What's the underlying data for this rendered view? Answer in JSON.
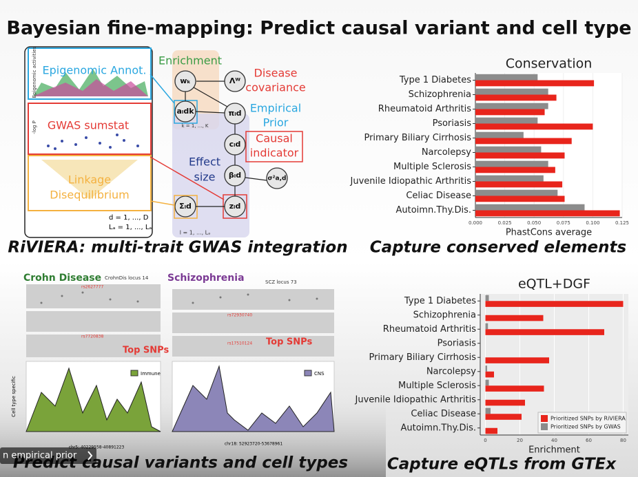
{
  "slide": {
    "title": "Bayesian fine-mapping: Predict causal variant and cell type",
    "captions": [
      "RiVIERA: multi-trait GWAS integration",
      "Capture conserved elements",
      "Predict causal variants and cell types",
      "Capture eQTLs from GTEx"
    ],
    "player_overlay": "n empirical prior"
  },
  "diagram": {
    "epigenomic": "Epigenomic Annot.",
    "gwas": "GWAS sumstat",
    "ld_1": "Linkage",
    "ld_2": "Disequilibrium",
    "enrichment": "Enrichment",
    "disease_1": "Disease",
    "disease_2": "covariance",
    "prior_1": "Empirical",
    "prior_2": "Prior",
    "causal_1": "Causal",
    "causal_2": "indicator",
    "effect_1": "Effect",
    "effect_2": "size",
    "node_w": "wₖ",
    "node_lambda": "Λᵂ",
    "node_a": "aₗdk",
    "node_pi": "πₗd",
    "node_c": "cₗd",
    "node_beta": "βₗd",
    "node_sigma": "σ²a,d",
    "node_Sigma": "Σₗd",
    "node_z": "zₗd",
    "plate_k": "k = 1, ..., K",
    "plate_l": "l = 1, ..., Lₐ",
    "index_d": "d = 1, ..., D",
    "index_l": "Lₐ = 1, ..., Lₐ",
    "axis_epi": "Epigenomic activities",
    "axis_gwas": "-log P"
  },
  "loci": {
    "crohn": "Crohn Disease",
    "crohn_locus": "CrohnDis locus 14",
    "scz": "Schizophrenia",
    "scz_locus": "SCZ locus 73",
    "top_snps_1": "Top SNPs",
    "top_snps_2": "Top SNPs",
    "immune": "Immune",
    "cns": "CNS",
    "y_label": "Cell type specific",
    "crohn_region": "chr5: 40229558-40891223",
    "scz_region": "chr18: 52923720-53678961",
    "snp_c1": "rs2627777",
    "snp_c2": "rs7720838",
    "snp_s1": "rs72930740",
    "snp_s2": "rs17510124"
  },
  "chart_data": [
    {
      "type": "bar",
      "orientation": "horizontal",
      "title": "Conservation",
      "x_label": "PhastCons average",
      "categories": [
        "Type 1 Diabetes",
        "Schizophrenia",
        "Rheumatoid Arthritis",
        "Psoriasis",
        "Primary Biliary Cirrhosis",
        "Narcolepsy",
        "Multiple Sclerosis",
        "Juvenile Idiopathic Arthritis",
        "Celiac Disease",
        "Autoimn.Thy.Dis."
      ],
      "series": [
        {
          "color": "#8c8c8c",
          "values": [
            0.053,
            0.062,
            0.062,
            0.053,
            0.041,
            0.056,
            0.062,
            0.058,
            0.07,
            0.093
          ]
        },
        {
          "color": "#e8251c",
          "values": [
            0.101,
            0.069,
            0.059,
            0.1,
            0.082,
            0.076,
            0.068,
            0.074,
            0.076,
            0.123
          ]
        }
      ],
      "xlim": [
        0,
        0.125
      ],
      "xticks": [
        {
          "value": 0,
          "label": "0.000"
        },
        0.025,
        {
          "value": 0.05,
          "label": "0.050"
        },
        0.075,
        {
          "value": 0.1,
          "label": "0.100"
        },
        0.125
      ]
    },
    {
      "type": "bar",
      "orientation": "horizontal",
      "title": "eQTL+DGF",
      "x_label": "Enrichment",
      "legend": "bottom-right",
      "categories": [
        "Type 1 Diabetes",
        "Schizophrenia",
        "Rheumatoid Arthritis",
        "Psoriasis",
        "Primary Biliary Cirrhosis",
        "Narcolepsy",
        "Multiple Sclerosis",
        "Juvenile Idiopathic Arthritis",
        "Celiac Disease",
        "Autoimn.Thy.Dis."
      ],
      "series": [
        {
          "name": "Prioritized SNPs by GWAS",
          "color": "#8c8c8c",
          "values": [
            2,
            0,
            1.5,
            0,
            0,
            1,
            2,
            0,
            3,
            0
          ]
        },
        {
          "name": "Prioritized SNPs by RiVIERA",
          "color": "#e8251c",
          "values": [
            80,
            33.6,
            69,
            0,
            37,
            5,
            34,
            23,
            21,
            7
          ]
        }
      ],
      "legend_order": [
        1,
        0
      ],
      "xlim": [
        -3,
        83
      ],
      "xticks": [
        0,
        20,
        40,
        60,
        80
      ]
    }
  ]
}
